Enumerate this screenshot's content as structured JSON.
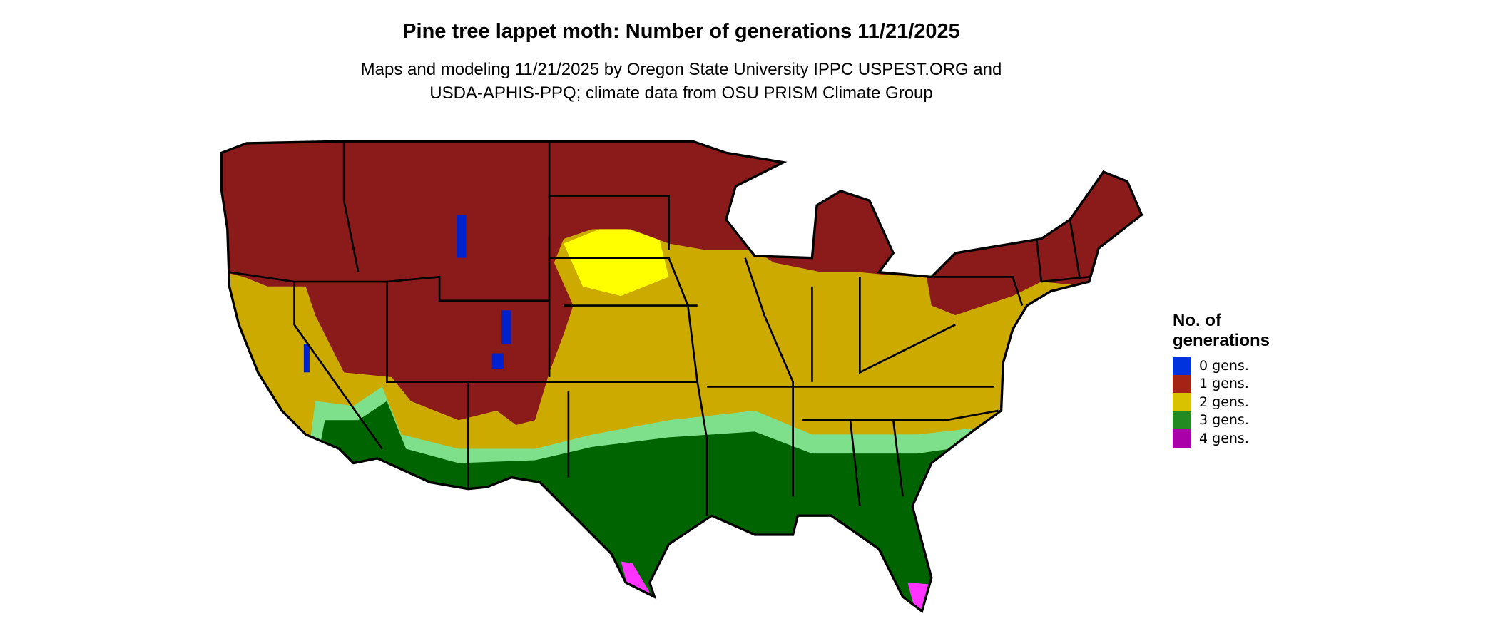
{
  "title": "Pine tree lappet moth: Number of generations 11/21/2025",
  "subtitle_line1": "Maps and modeling 11/21/2025 by Oregon State University IPPC USPEST.ORG and",
  "subtitle_line2": "USDA-APHIS-PPQ; climate data from OSU PRISM Climate Group",
  "legend": {
    "title_line1": "No. of",
    "title_line2": "generations",
    "items": [
      {
        "label": "0 gens.",
        "color": "#0033dd"
      },
      {
        "label": "1 gens.",
        "color": "#a52315"
      },
      {
        "label": "2 gens.",
        "color": "#d9c300"
      },
      {
        "label": "3 gens.",
        "color": "#228b22"
      },
      {
        "label": "4 gens.",
        "color": "#aa00aa"
      }
    ]
  },
  "map_colors": {
    "one_gen": "#8b1a1a",
    "two_gen": "#ccaa00",
    "two_gen_light": "#ffff00",
    "three_gen": "#006400",
    "three_gen_fringe": "#7ee08a",
    "four_gen": "#ff33ff",
    "zero_gen": "#0022cc",
    "border": "#000000"
  }
}
